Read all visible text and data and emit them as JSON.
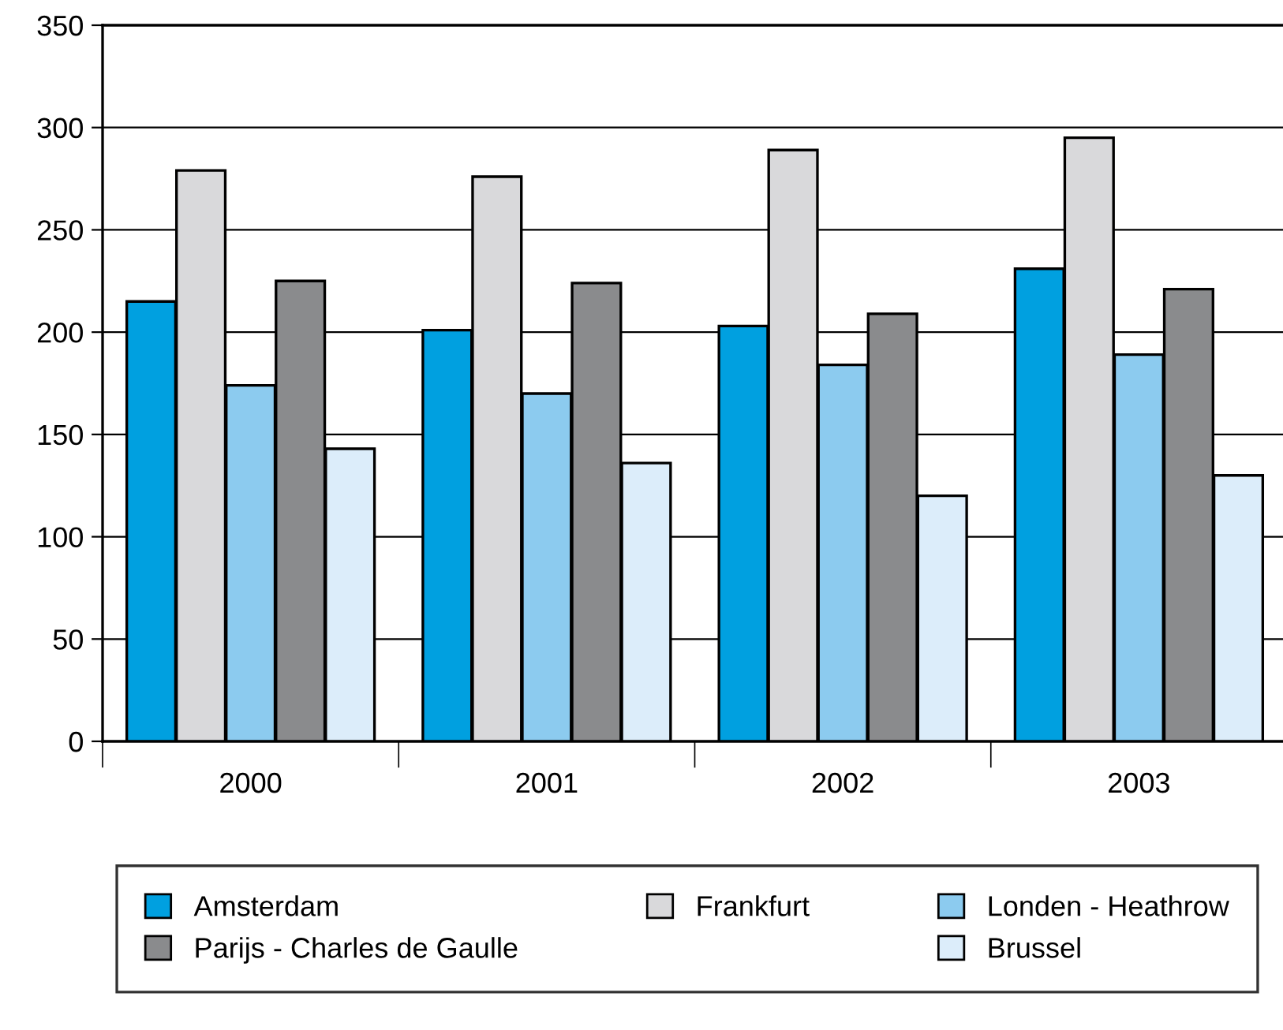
{
  "chart_data": {
    "type": "bar",
    "categories": [
      "2000",
      "2001",
      "2002",
      "2003"
    ],
    "series": [
      {
        "name": "Amsterdam",
        "color": "#00a0e0",
        "values": [
          215,
          201,
          203,
          231
        ]
      },
      {
        "name": "Frankfurt",
        "color": "#d9d9db",
        "values": [
          279,
          276,
          289,
          295
        ]
      },
      {
        "name": "Londen - Heathrow",
        "color": "#8ccbef",
        "values": [
          174,
          170,
          184,
          189
        ]
      },
      {
        "name": "Parijs - Charles de Gaulle",
        "color": "#8a8b8d",
        "values": [
          225,
          224,
          209,
          221
        ]
      },
      {
        "name": "Brussel",
        "color": "#dcedfa",
        "values": [
          143,
          136,
          120,
          130
        ]
      }
    ],
    "ylim": [
      0,
      350
    ],
    "yticks": [
      0,
      50,
      100,
      150,
      200,
      250,
      300,
      350
    ],
    "grid": "y",
    "legend": "bottom"
  }
}
